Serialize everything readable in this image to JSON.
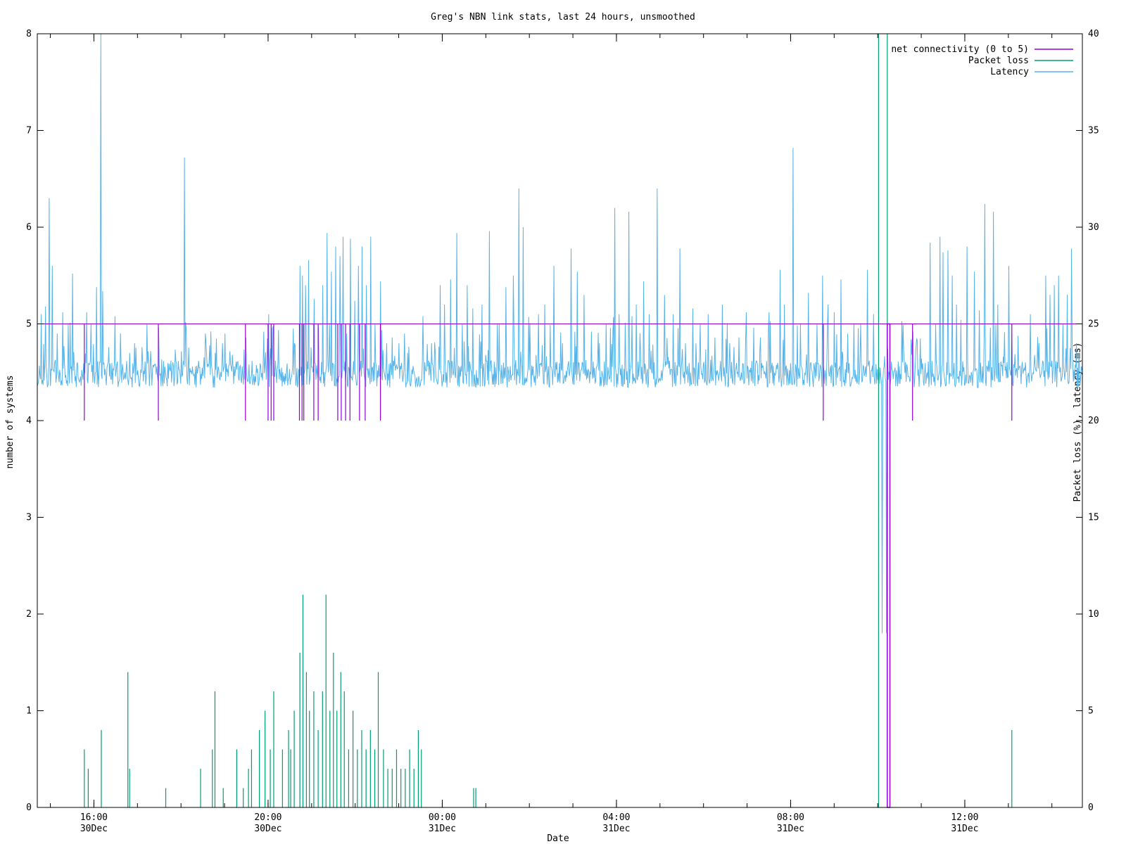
{
  "chart_data": {
    "type": "line",
    "title": "Greg's NBN link stats, last 24 hours, unsmoothed",
    "xlabel": "Date",
    "ylabel_left": "number of systems",
    "ylabel_right": "Packet loss (%), latency (ms)",
    "y_left": {
      "min": 0,
      "max": 8,
      "ticks": [
        "0",
        "1",
        "2",
        "3",
        "4",
        "5",
        "6",
        "7",
        "8"
      ]
    },
    "y_right": {
      "min": 0,
      "max": 40,
      "ticks": [
        "0",
        "5",
        "10",
        "15",
        "20",
        "25",
        "30",
        "35",
        "40"
      ]
    },
    "x_range_hours": [
      14.7,
      38.7
    ],
    "x_ticks": [
      {
        "hour": 16,
        "time": "16:00",
        "date": "30Dec"
      },
      {
        "hour": 20,
        "time": "20:00",
        "date": "30Dec"
      },
      {
        "hour": 24,
        "time": "00:00",
        "date": "31Dec"
      },
      {
        "hour": 28,
        "time": "04:00",
        "date": "31Dec"
      },
      {
        "hour": 32,
        "time": "08:00",
        "date": "31Dec"
      },
      {
        "hour": 36,
        "time": "12:00",
        "date": "31Dec"
      }
    ],
    "legend_position": "top-right",
    "series": [
      {
        "name": "net connectivity (0 to 5)",
        "axis": "left",
        "color": "#9400d3",
        "baseline": 5,
        "dips": [
          [
            15.78,
            4
          ],
          [
            17.48,
            4
          ],
          [
            19.48,
            4
          ],
          [
            20.0,
            4
          ],
          [
            20.07,
            4
          ],
          [
            20.13,
            4
          ],
          [
            20.72,
            4
          ],
          [
            20.78,
            4
          ],
          [
            20.82,
            4
          ],
          [
            21.05,
            4
          ],
          [
            21.15,
            4
          ],
          [
            21.6,
            4
          ],
          [
            21.68,
            4
          ],
          [
            21.78,
            4
          ],
          [
            21.88,
            4
          ],
          [
            22.1,
            4
          ],
          [
            22.23,
            4
          ],
          [
            22.58,
            4
          ],
          [
            32.75,
            4
          ],
          [
            34.8,
            4
          ],
          [
            37.08,
            4
          ]
        ],
        "outage": {
          "from": 34.22,
          "to": 34.28,
          "value": 0
        }
      },
      {
        "name": "Packet loss",
        "axis": "right",
        "color": "#009e73",
        "spikes": [
          [
            15.78,
            3.0
          ],
          [
            15.87,
            2.0
          ],
          [
            16.17,
            4.0
          ],
          [
            16.78,
            7.0
          ],
          [
            16.82,
            2.0
          ],
          [
            17.65,
            1.0
          ],
          [
            18.45,
            2.0
          ],
          [
            18.72,
            3.0
          ],
          [
            18.78,
            6.0
          ],
          [
            18.97,
            1.0
          ],
          [
            19.28,
            3.0
          ],
          [
            19.43,
            1.0
          ],
          [
            19.55,
            2.0
          ],
          [
            19.62,
            3.0
          ],
          [
            19.8,
            4.0
          ],
          [
            19.93,
            5.0
          ],
          [
            20.05,
            3.0
          ],
          [
            20.13,
            6.0
          ],
          [
            20.33,
            3.0
          ],
          [
            20.47,
            4.0
          ],
          [
            20.52,
            3.0
          ],
          [
            20.6,
            5.0
          ],
          [
            20.73,
            8.0
          ],
          [
            20.8,
            11.0
          ],
          [
            20.88,
            7.0
          ],
          [
            20.95,
            5.0
          ],
          [
            21.05,
            6.0
          ],
          [
            21.15,
            4.0
          ],
          [
            21.25,
            6.0
          ],
          [
            21.33,
            11.0
          ],
          [
            21.42,
            5.0
          ],
          [
            21.5,
            8.0
          ],
          [
            21.58,
            5.0
          ],
          [
            21.67,
            7.0
          ],
          [
            21.75,
            6.0
          ],
          [
            21.85,
            3.0
          ],
          [
            21.95,
            5.0
          ],
          [
            22.05,
            3.0
          ],
          [
            22.15,
            4.0
          ],
          [
            22.25,
            3.0
          ],
          [
            22.35,
            4.0
          ],
          [
            22.45,
            3.0
          ],
          [
            22.53,
            7.0
          ],
          [
            22.65,
            3.0
          ],
          [
            22.75,
            2.0
          ],
          [
            22.85,
            2.0
          ],
          [
            22.95,
            3.0
          ],
          [
            23.05,
            2.0
          ],
          [
            23.15,
            2.0
          ],
          [
            23.25,
            3.0
          ],
          [
            23.35,
            2.0
          ],
          [
            23.45,
            4.0
          ],
          [
            23.52,
            3.0
          ],
          [
            24.72,
            1.0
          ],
          [
            24.77,
            1.0
          ],
          [
            37.08,
            4.0
          ]
        ],
        "outage": {
          "from": 34.02,
          "to": 34.22,
          "value": 40
        }
      },
      {
        "name": "Latency",
        "axis": "right",
        "color": "#56b4e9",
        "baseline_ms": 22.4,
        "spikes": [
          [
            14.78,
            25.5
          ],
          [
            14.88,
            25.9
          ],
          [
            14.97,
            31.5
          ],
          [
            15.03,
            28.0
          ],
          [
            15.15,
            24.5
          ],
          [
            15.28,
            25.6
          ],
          [
            15.4,
            25.0
          ],
          [
            15.5,
            27.6
          ],
          [
            15.83,
            25.6
          ],
          [
            15.92,
            25.0
          ],
          [
            16.05,
            26.9
          ],
          [
            16.15,
            40.0
          ],
          [
            16.2,
            26.7
          ],
          [
            16.33,
            23.8
          ],
          [
            16.48,
            25.4
          ],
          [
            16.6,
            24.5
          ],
          [
            16.82,
            23.5
          ],
          [
            16.93,
            24.0
          ],
          [
            17.1,
            23.8
          ],
          [
            17.3,
            23.6
          ],
          [
            17.48,
            24.8
          ],
          [
            18.07,
            33.6
          ],
          [
            18.12,
            24.7
          ],
          [
            18.78,
            23.5
          ],
          [
            19.18,
            23.4
          ],
          [
            19.48,
            24.3
          ],
          [
            19.55,
            22.9
          ],
          [
            20.0,
            25.5
          ],
          [
            20.07,
            24.8
          ],
          [
            20.6,
            24.0
          ],
          [
            20.72,
            28.0
          ],
          [
            20.78,
            27.5
          ],
          [
            20.85,
            27.0
          ],
          [
            20.92,
            28.3
          ],
          [
            21.05,
            26.3
          ],
          [
            21.15,
            24.8
          ],
          [
            21.25,
            27.0
          ],
          [
            21.35,
            29.7
          ],
          [
            21.45,
            27.7
          ],
          [
            21.55,
            29.0
          ],
          [
            21.65,
            28.5
          ],
          [
            21.72,
            29.5
          ],
          [
            21.8,
            24.5
          ],
          [
            21.88,
            29.4
          ],
          [
            21.98,
            26.2
          ],
          [
            22.07,
            28.0
          ],
          [
            22.15,
            29.0
          ],
          [
            22.25,
            27.0
          ],
          [
            22.35,
            29.5
          ],
          [
            22.45,
            25.0
          ],
          [
            22.58,
            27.2
          ],
          [
            22.72,
            24.0
          ],
          [
            22.85,
            24.3
          ],
          [
            23.0,
            24.0
          ],
          [
            23.2,
            23.5
          ],
          [
            23.55,
            25.4
          ],
          [
            23.75,
            24.0
          ],
          [
            23.95,
            27.0
          ],
          [
            24.05,
            26.0
          ],
          [
            24.18,
            27.3
          ],
          [
            24.32,
            29.7
          ],
          [
            24.45,
            25.0
          ],
          [
            24.57,
            27.0
          ],
          [
            24.7,
            25.8
          ],
          [
            24.9,
            26.0
          ],
          [
            25.07,
            29.8
          ],
          [
            25.3,
            25.0
          ],
          [
            25.45,
            26.9
          ],
          [
            25.62,
            27.5
          ],
          [
            25.75,
            32.0
          ],
          [
            25.85,
            30.0
          ],
          [
            26.0,
            25.0
          ],
          [
            26.2,
            25.5
          ],
          [
            26.35,
            26.0
          ],
          [
            26.55,
            28.0
          ],
          [
            26.75,
            24.0
          ],
          [
            26.95,
            28.9
          ],
          [
            27.1,
            27.7
          ],
          [
            27.25,
            26.5
          ],
          [
            27.42,
            24.6
          ],
          [
            27.6,
            24.0
          ],
          [
            27.75,
            25.0
          ],
          [
            27.95,
            31.0
          ],
          [
            28.05,
            25.5
          ],
          [
            28.28,
            30.8
          ],
          [
            28.45,
            26.0
          ],
          [
            28.62,
            27.2
          ],
          [
            28.75,
            25.5
          ],
          [
            28.93,
            32.0
          ],
          [
            29.1,
            26.5
          ],
          [
            29.3,
            25.5
          ],
          [
            29.45,
            28.9
          ],
          [
            29.58,
            24.0
          ],
          [
            29.75,
            25.8
          ],
          [
            29.92,
            25.0
          ],
          [
            30.1,
            25.5
          ],
          [
            30.25,
            24.3
          ],
          [
            30.42,
            26.0
          ],
          [
            30.6,
            24.0
          ],
          [
            30.8,
            24.3
          ],
          [
            30.98,
            25.6
          ],
          [
            31.15,
            24.8
          ],
          [
            31.3,
            24.3
          ],
          [
            31.5,
            25.6
          ],
          [
            31.75,
            27.8
          ],
          [
            31.85,
            26.0
          ],
          [
            32.05,
            34.1
          ],
          [
            32.22,
            25.0
          ],
          [
            32.4,
            26.6
          ],
          [
            32.6,
            25.0
          ],
          [
            32.73,
            27.5
          ],
          [
            32.85,
            26.0
          ],
          [
            33.0,
            25.6
          ],
          [
            33.15,
            27.3
          ],
          [
            33.3,
            24.5
          ],
          [
            33.45,
            25.0
          ],
          [
            33.6,
            25.0
          ],
          [
            33.75,
            27.8
          ],
          [
            33.9,
            25.5
          ],
          [
            34.1,
            9.0
          ],
          [
            34.2,
            9.0
          ],
          [
            34.6,
            23.0
          ],
          [
            34.8,
            24.6
          ],
          [
            35.0,
            23.2
          ],
          [
            35.2,
            29.2
          ],
          [
            35.32,
            25.0
          ],
          [
            35.42,
            29.5
          ],
          [
            35.5,
            28.7
          ],
          [
            35.6,
            28.8
          ],
          [
            35.7,
            27.5
          ],
          [
            35.8,
            26.0
          ],
          [
            35.9,
            25.2
          ],
          [
            36.05,
            29.0
          ],
          [
            36.22,
            27.7
          ],
          [
            36.32,
            25.7
          ],
          [
            36.45,
            31.2
          ],
          [
            36.58,
            24.8
          ],
          [
            36.65,
            30.8
          ],
          [
            36.75,
            26.0
          ],
          [
            36.88,
            23.3
          ],
          [
            37.0,
            28.0
          ],
          [
            37.08,
            24.5
          ],
          [
            37.3,
            22.8
          ],
          [
            37.5,
            25.5
          ],
          [
            37.7,
            24.0
          ],
          [
            37.85,
            27.5
          ],
          [
            37.95,
            26.5
          ],
          [
            38.05,
            27.0
          ],
          [
            38.15,
            27.5
          ],
          [
            38.25,
            25.0
          ],
          [
            38.35,
            26.5
          ],
          [
            38.45,
            28.9
          ],
          [
            38.55,
            24.0
          ],
          [
            38.62,
            23.5
          ]
        ]
      }
    ]
  }
}
